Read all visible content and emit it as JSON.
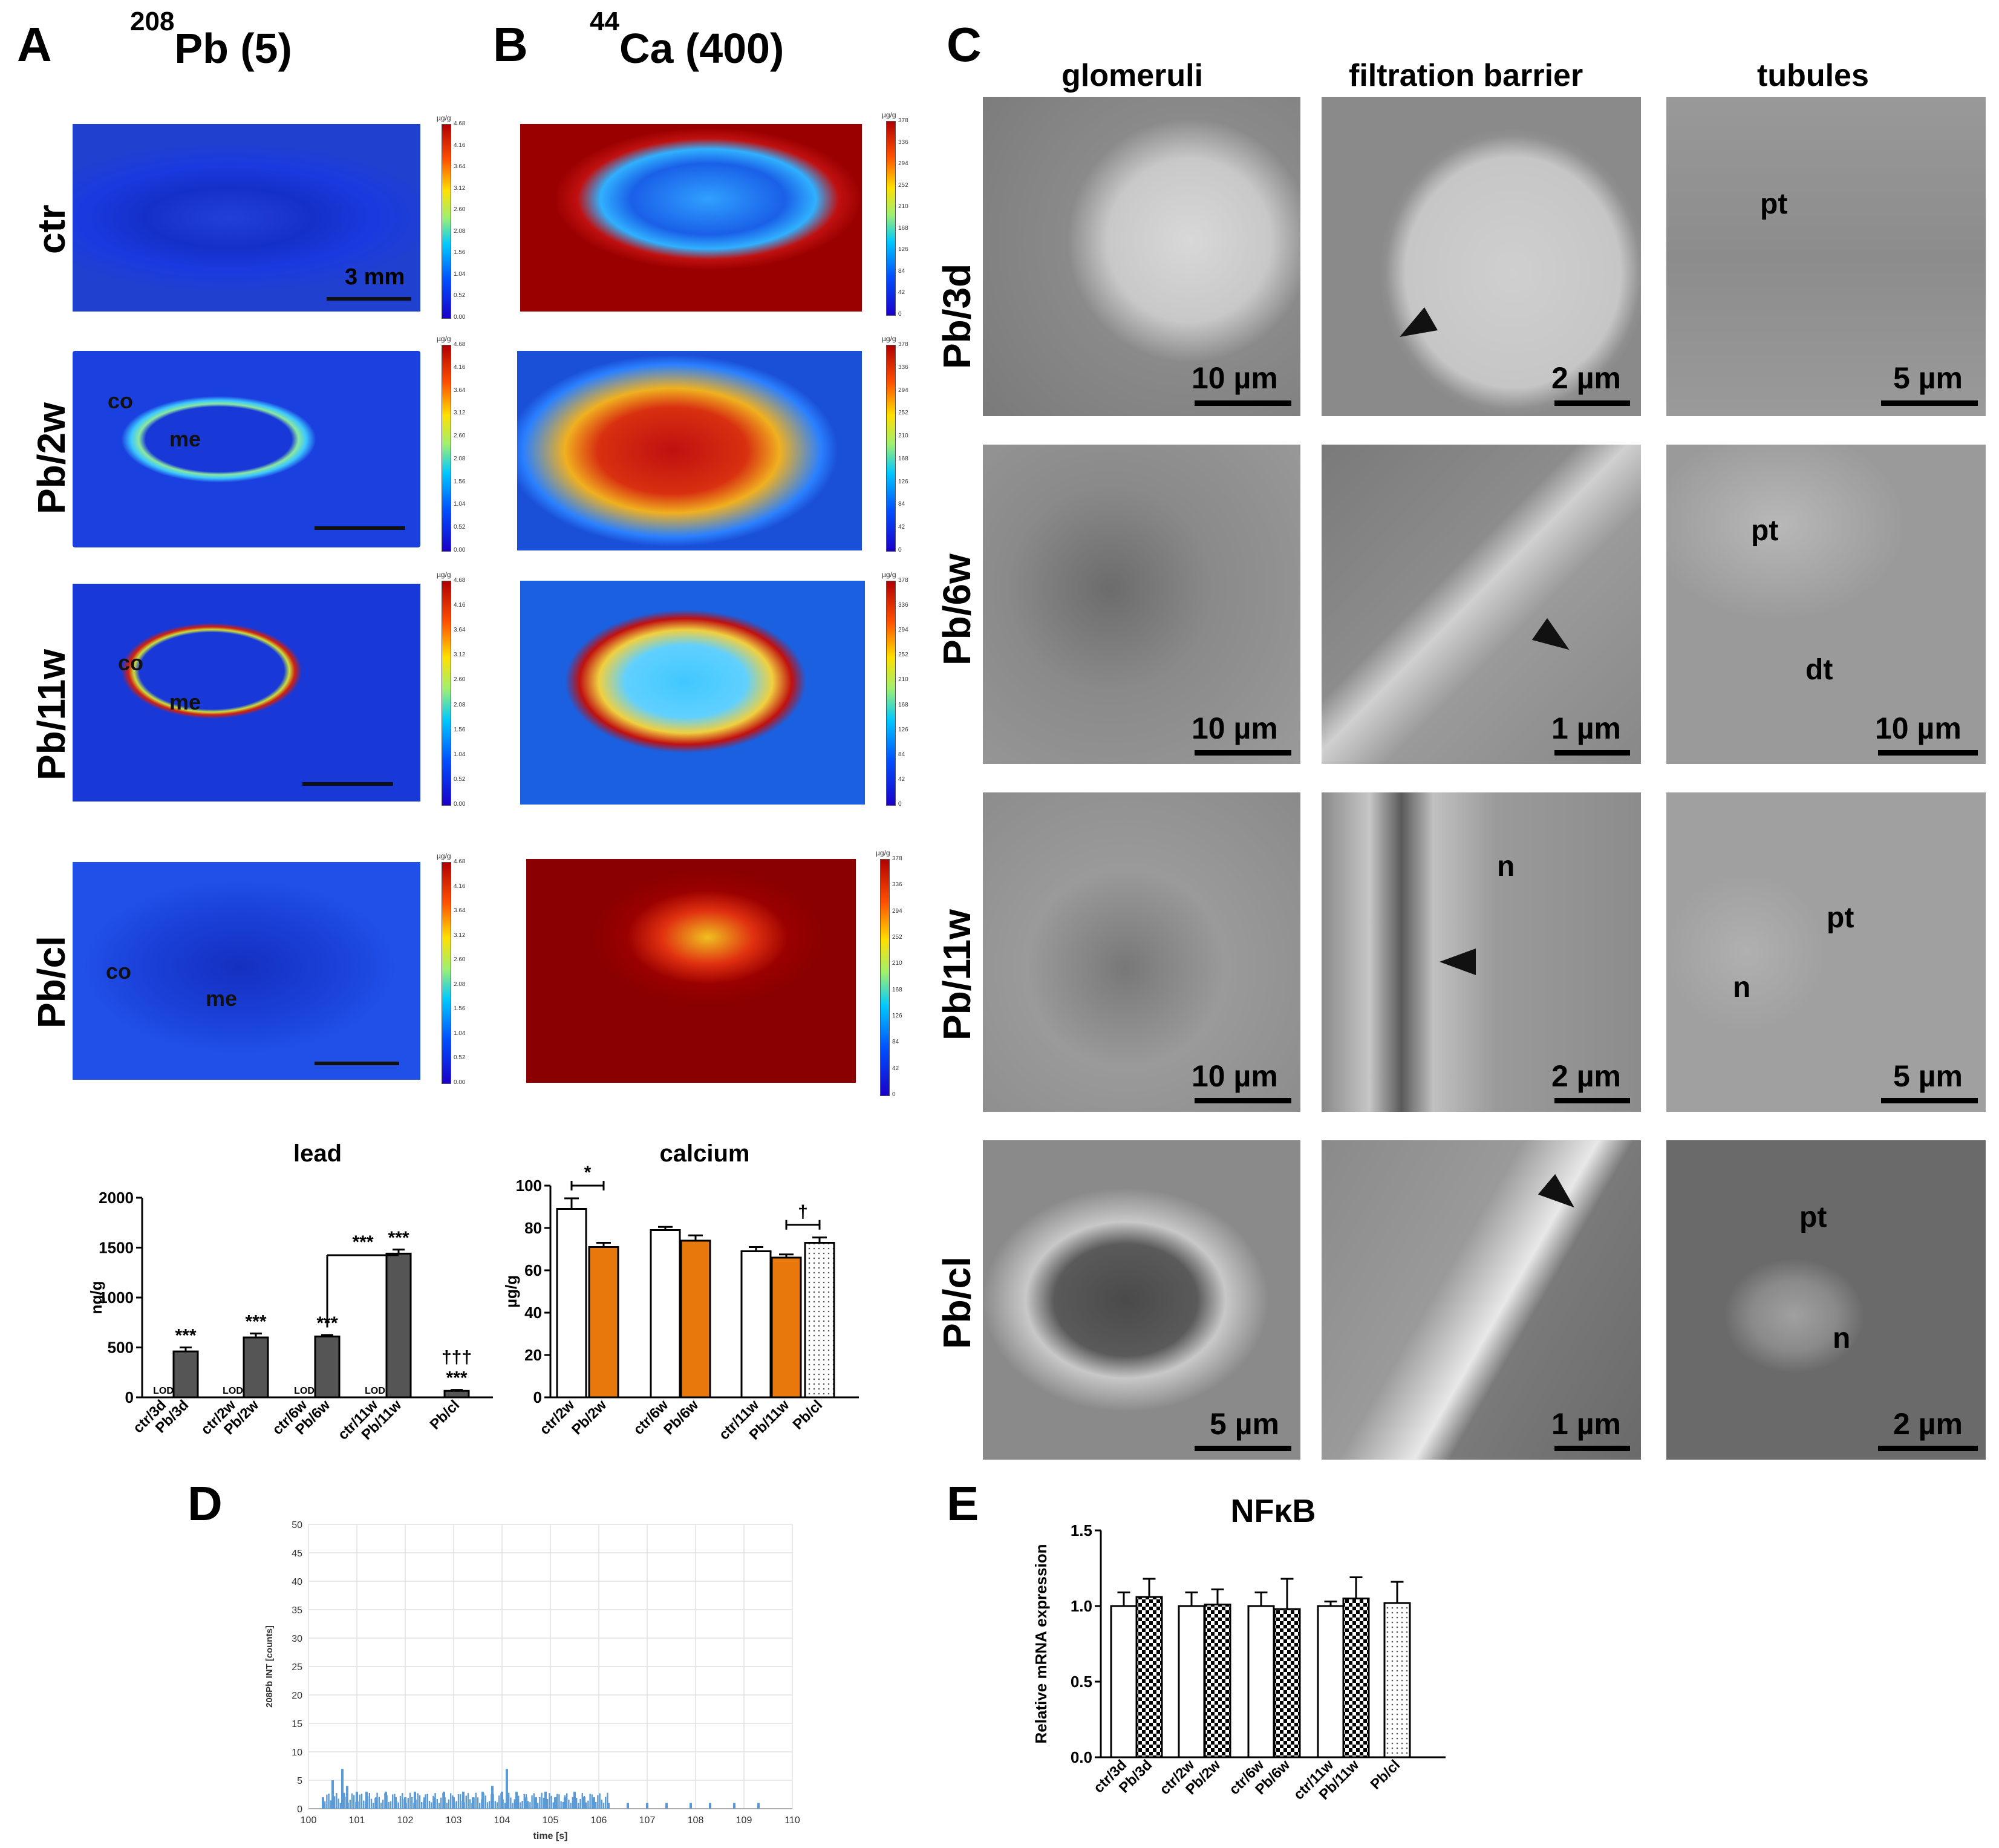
{
  "panels": {
    "A": {
      "letter": "A",
      "header_super": "208",
      "header_main": "Pb (5)"
    },
    "B": {
      "letter": "B",
      "header_super": "44",
      "header_main": "Ca (400)"
    },
    "C": {
      "letter": "C"
    },
    "D": {
      "letter": "D"
    },
    "E": {
      "letter": "E"
    }
  },
  "row_labels_ab": [
    "ctr",
    "Pb/2w",
    "Pb/11w",
    "Pb/cl"
  ],
  "row_labels_c": [
    "Pb/3d",
    "Pb/6w",
    "Pb/11w",
    "Pb/cl"
  ],
  "map_labels": {
    "co": "co",
    "me": "me"
  },
  "scale_3mm": "3 mm",
  "colorbar": {
    "unit": "µg/g",
    "pb_ticks": [
      "4.68",
      "4.16",
      "3.64",
      "3.12",
      "2.60",
      "2.08",
      "1.56",
      "1.04",
      "0.52",
      "0.00"
    ],
    "ca_ticks": [
      "378",
      "336",
      "294",
      "252",
      "210",
      "168",
      "126",
      "84",
      "42",
      "0"
    ]
  },
  "em": {
    "columns": [
      "glomeruli",
      "filtration barrier",
      "tubules"
    ],
    "scales": [
      [
        "10 µm",
        "2 µm",
        "5 µm"
      ],
      [
        "10 µm",
        "1 µm",
        "10 µm"
      ],
      [
        "10 µm",
        "2 µm",
        "5 µm"
      ],
      [
        "5 µm",
        "1 µm",
        "2 µm"
      ]
    ],
    "labels": {
      "pt": "pt",
      "dt": "dt",
      "n": "n"
    }
  },
  "colors": {
    "orange": "#e8780c",
    "dark_bar": "#555555",
    "white_bar": "#ffffff",
    "series_blue": "#5b9bd5"
  },
  "chart_data": [
    {
      "id": "lead",
      "type": "bar",
      "title": "lead",
      "ylabel": "ng/g",
      "ylim": [
        0,
        2000
      ],
      "yticks": [
        0,
        500,
        1000,
        1500,
        2000
      ],
      "categories": [
        "ctr/3d",
        "Pb/3d",
        "ctr/2w",
        "Pb/2w",
        "ctr/6w",
        "Pb/6w",
        "ctr/11w",
        "Pb/11w",
        "Pb/cl"
      ],
      "values": [
        0,
        460,
        0,
        600,
        0,
        610,
        0,
        1440,
        65
      ],
      "errors": [
        0,
        40,
        0,
        40,
        0,
        15,
        0,
        40,
        10
      ],
      "value_labels": [
        "LOD",
        "***",
        "LOD",
        "***",
        "LOD",
        "***",
        "LOD",
        "***",
        "†††\n***"
      ],
      "bracket": {
        "from": "Pb/6w",
        "to": "Pb/11w",
        "label": "***"
      }
    },
    {
      "id": "calcium",
      "type": "bar",
      "title": "calcium",
      "ylabel": "µg/g",
      "ylim": [
        0,
        100
      ],
      "yticks": [
        0,
        20,
        40,
        60,
        80,
        100
      ],
      "categories": [
        "ctr/2w",
        "Pb/2w",
        "ctr/6w",
        "Pb/6w",
        "ctr/11w",
        "Pb/11w",
        "Pb/cl"
      ],
      "values": [
        89,
        71,
        79,
        74,
        69,
        66,
        73
      ],
      "errors": [
        5,
        2,
        1.5,
        2.5,
        2,
        1.5,
        2.5
      ],
      "brackets": [
        {
          "from": "ctr/2w",
          "to": "Pb/2w",
          "label": "*"
        },
        {
          "from": "Pb/11w",
          "to": "Pb/cl",
          "label": "†"
        }
      ]
    },
    {
      "id": "D",
      "type": "bar",
      "ylabel": "208Pb INT [counts]",
      "xlabel": "time [s]",
      "ylim": [
        0,
        50
      ],
      "yticks": [
        0,
        5,
        10,
        15,
        20,
        25,
        30,
        35,
        40,
        45,
        50
      ],
      "xlim": [
        100,
        110
      ],
      "xticks": [
        100,
        101,
        102,
        103,
        104,
        105,
        106,
        107,
        108,
        109,
        110
      ],
      "x": [
        100.3,
        100.5,
        100.7,
        100.8,
        101.0,
        101.2,
        101.4,
        101.6,
        101.8,
        102.0,
        102.2,
        102.4,
        102.6,
        102.8,
        103.0,
        103.2,
        103.4,
        103.6,
        103.8,
        104.0,
        104.1,
        104.3,
        104.5,
        104.7,
        104.9,
        105.1,
        105.3,
        105.5,
        105.7,
        105.9,
        106.2,
        106.6,
        107.0,
        107.4,
        107.9,
        108.3,
        108.8,
        109.3
      ],
      "values": [
        2,
        5,
        7,
        4,
        3,
        3,
        2,
        3,
        2,
        2,
        3,
        2,
        2,
        3,
        2,
        3,
        2,
        3,
        4,
        3,
        7,
        3,
        2,
        2,
        3,
        2,
        2,
        3,
        2,
        2,
        1,
        1,
        1,
        1,
        1,
        1,
        1,
        1
      ]
    },
    {
      "id": "E",
      "type": "bar",
      "title": "NFκB",
      "ylabel": "Relative mRNA expression",
      "ylim": [
        0,
        1.5
      ],
      "yticks": [
        "0.0",
        "0.5",
        "1.0",
        "1.5"
      ],
      "categories": [
        "ctr/3d",
        "Pb/3d",
        "ctr/2w",
        "Pb/2w",
        "ctr/6w",
        "Pb/6w",
        "ctr/11w",
        "Pb/11w",
        "Pb/cl"
      ],
      "values": [
        1.0,
        1.06,
        1.0,
        1.01,
        1.0,
        0.98,
        1.0,
        1.05,
        1.02
      ],
      "errors": [
        0.09,
        0.12,
        0.09,
        0.1,
        0.09,
        0.2,
        0.03,
        0.14,
        0.14
      ]
    }
  ]
}
